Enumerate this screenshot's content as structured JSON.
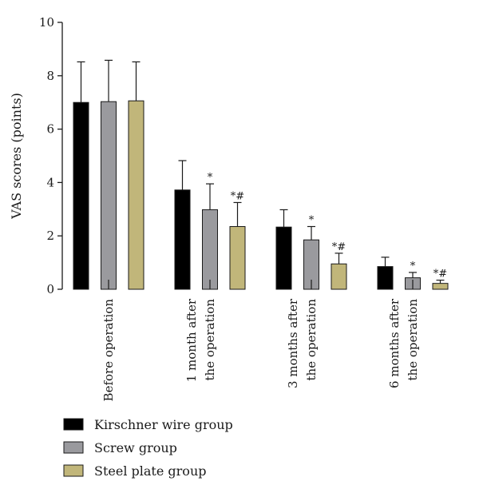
{
  "chart_data": {
    "type": "bar",
    "ylabel": "VAS scores (points)",
    "ylim": [
      0,
      10
    ],
    "yticks": [
      0,
      2,
      4,
      6,
      8,
      10
    ],
    "categories": [
      [
        "Before operation"
      ],
      [
        "1 month after",
        "the operation"
      ],
      [
        "3 months after",
        "the operation"
      ],
      [
        "6 months after",
        "the operation"
      ]
    ],
    "series": [
      {
        "name": "Kirschner wire group",
        "color": "#000000",
        "values": [
          7.0,
          3.72,
          2.33,
          0.85
        ],
        "errors": [
          1.52,
          1.1,
          0.65,
          0.35
        ],
        "significance": [
          "",
          "",
          "",
          ""
        ]
      },
      {
        "name": "Screw group",
        "color": "#9a9a9e",
        "values": [
          7.03,
          2.98,
          1.85,
          0.43
        ],
        "errors": [
          1.55,
          0.97,
          0.5,
          0.2
        ],
        "significance": [
          "",
          "*",
          "*",
          "*"
        ]
      },
      {
        "name": "Steel plate group",
        "color": "#c1b67a",
        "values": [
          7.06,
          2.35,
          0.95,
          0.22
        ],
        "errors": [
          1.46,
          0.9,
          0.4,
          0.12
        ],
        "significance": [
          "",
          "*#",
          "*#",
          "*#"
        ]
      }
    ],
    "legend_position": "bottom-left",
    "grid": false
  }
}
